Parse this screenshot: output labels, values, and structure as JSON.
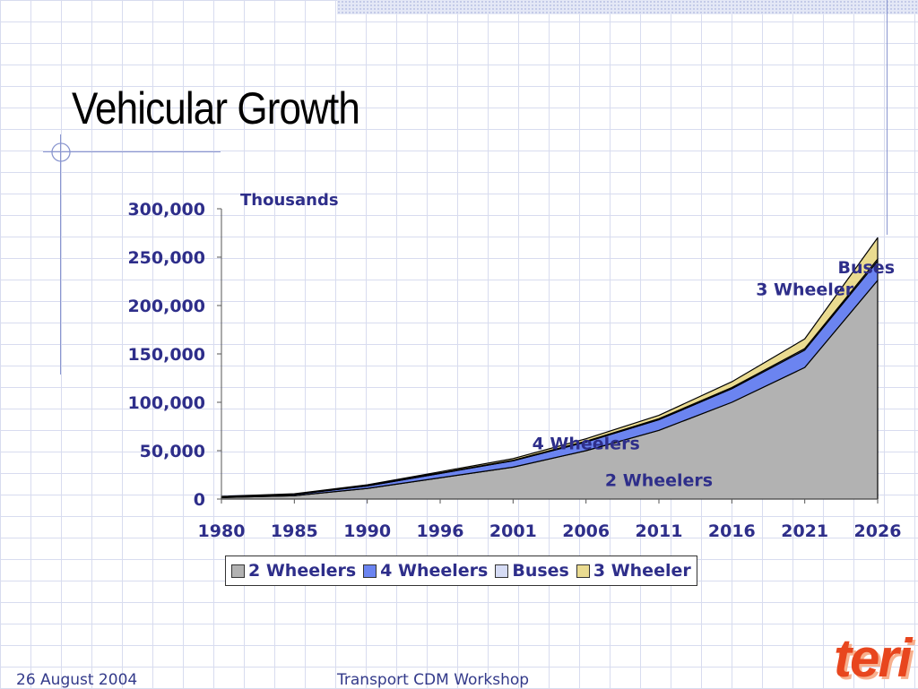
{
  "slide": {
    "title": "Vehicular Growth",
    "footer_date": "26 August 2004",
    "footer_event": "Transport CDM Workshop",
    "logo_text": "teri"
  },
  "chart_data": {
    "type": "area",
    "stacked": true,
    "x": [
      "1980",
      "1985",
      "1990",
      "1996",
      "2001",
      "2006",
      "2011",
      "2016",
      "2021",
      "2026"
    ],
    "series": [
      {
        "name": "2 Wheelers",
        "color": "#b2b2b2",
        "values": [
          1500,
          3500,
          11000,
          22000,
          33000,
          50000,
          71000,
          100000,
          136000,
          226000
        ]
      },
      {
        "name": "4 Wheelers",
        "color": "#6b84f0",
        "values": [
          800,
          1200,
          2500,
          4500,
          6500,
          9000,
          11000,
          14000,
          18000,
          20000
        ]
      },
      {
        "name": "Buses",
        "color": "#d6dcf5",
        "values": [
          200,
          300,
          400,
          500,
          600,
          800,
          1000,
          1200,
          1500,
          2000
        ]
      },
      {
        "name": "3 Wheeler",
        "color": "#eadb90",
        "values": [
          300,
          500,
          800,
          1200,
          1700,
          2500,
          3500,
          6000,
          10000,
          22000
        ]
      }
    ],
    "yunit": "Thousands",
    "ylim": [
      0,
      300000
    ],
    "yticks": [
      0,
      50000,
      100000,
      150000,
      200000,
      250000,
      300000
    ],
    "ytick_labels": [
      "0",
      "50,000",
      "100,000",
      "150,000",
      "200,000",
      "250,000",
      "300,000"
    ],
    "annotations": [
      {
        "text": "2 Wheelers",
        "x": "2011",
        "y": 20000
      },
      {
        "text": "4 Wheelers",
        "x": "2006",
        "y": 58000
      },
      {
        "text": "3 Wheeler",
        "x": "2021",
        "y": 217000
      },
      {
        "text": "Buses",
        "x": "2026",
        "y": 240000
      }
    ],
    "legend_position": "bottom",
    "grid": false
  }
}
